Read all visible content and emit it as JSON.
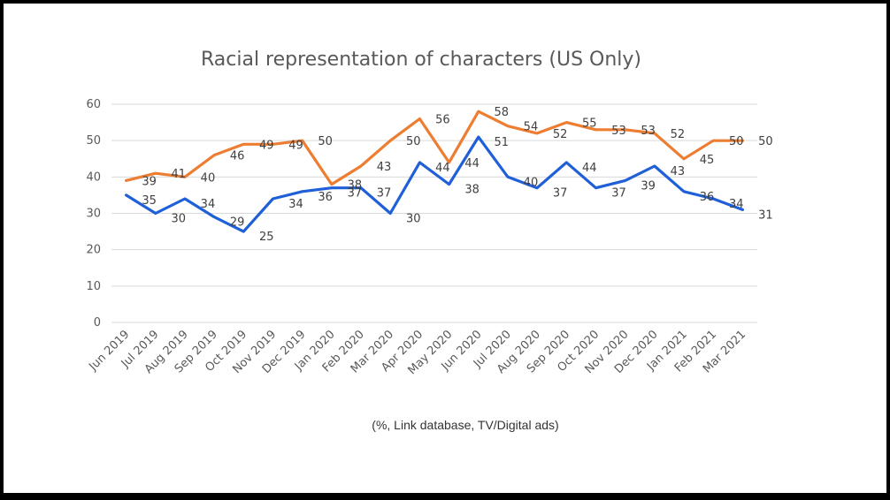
{
  "chart_data": {
    "type": "line",
    "title": "Racial representation of characters (US Only)",
    "subtitle": "(%, Link database, TV/Digital ads)",
    "xlabel": "",
    "ylabel": "",
    "ylim": [
      0,
      60
    ],
    "yticks": [
      0,
      10,
      20,
      30,
      40,
      50,
      60
    ],
    "grid": true,
    "legend": "none",
    "categories": [
      "Jun 2019",
      "Jul 2019",
      "Aug 2019",
      "Sep 2019",
      "Oct 2019",
      "Nov 2019",
      "Dec 2019",
      "Jan 2020",
      "Feb 2020",
      "Mar 2020",
      "Apr 2020",
      "May 2020",
      "Jun 2020",
      "Jul 2020",
      "Aug 2020",
      "Sep 2020",
      "Oct 2020",
      "Nov 2020",
      "Dec 2020",
      "Jan 2021",
      "Feb 2021",
      "Mar 2021"
    ],
    "series": [
      {
        "name": "Orange series",
        "color": "#ED7D31",
        "values": [
          39,
          41,
          40,
          46,
          49,
          49,
          50,
          38,
          43,
          50,
          56,
          44,
          58,
          54,
          52,
          55,
          53,
          53,
          52,
          45,
          50,
          50
        ]
      },
      {
        "name": "Blue series",
        "color": "#1F5FD8",
        "values": [
          35,
          30,
          34,
          29,
          25,
          34,
          36,
          37,
          37,
          30,
          44,
          38,
          51,
          40,
          37,
          44,
          37,
          39,
          43,
          36,
          34,
          31
        ]
      }
    ],
    "label_texts": {
      "orange": [
        "39",
        "41",
        "40",
        "46",
        "49",
        "49",
        "50",
        "38",
        "43",
        "50",
        "56",
        "44",
        "58",
        "54",
        "52",
        "55",
        "53",
        "53",
        "52",
        "45",
        "50",
        "50"
      ],
      "blue": [
        "35",
        "30",
        "34",
        "29",
        "25",
        "34",
        "36",
        "37",
        "37",
        "30",
        "44",
        "38",
        "51",
        "40",
        "37",
        "44",
        "37",
        "39",
        "43",
        "36",
        "34",
        "31"
      ]
    },
    "gridline_color": "#D9D9D9"
  }
}
